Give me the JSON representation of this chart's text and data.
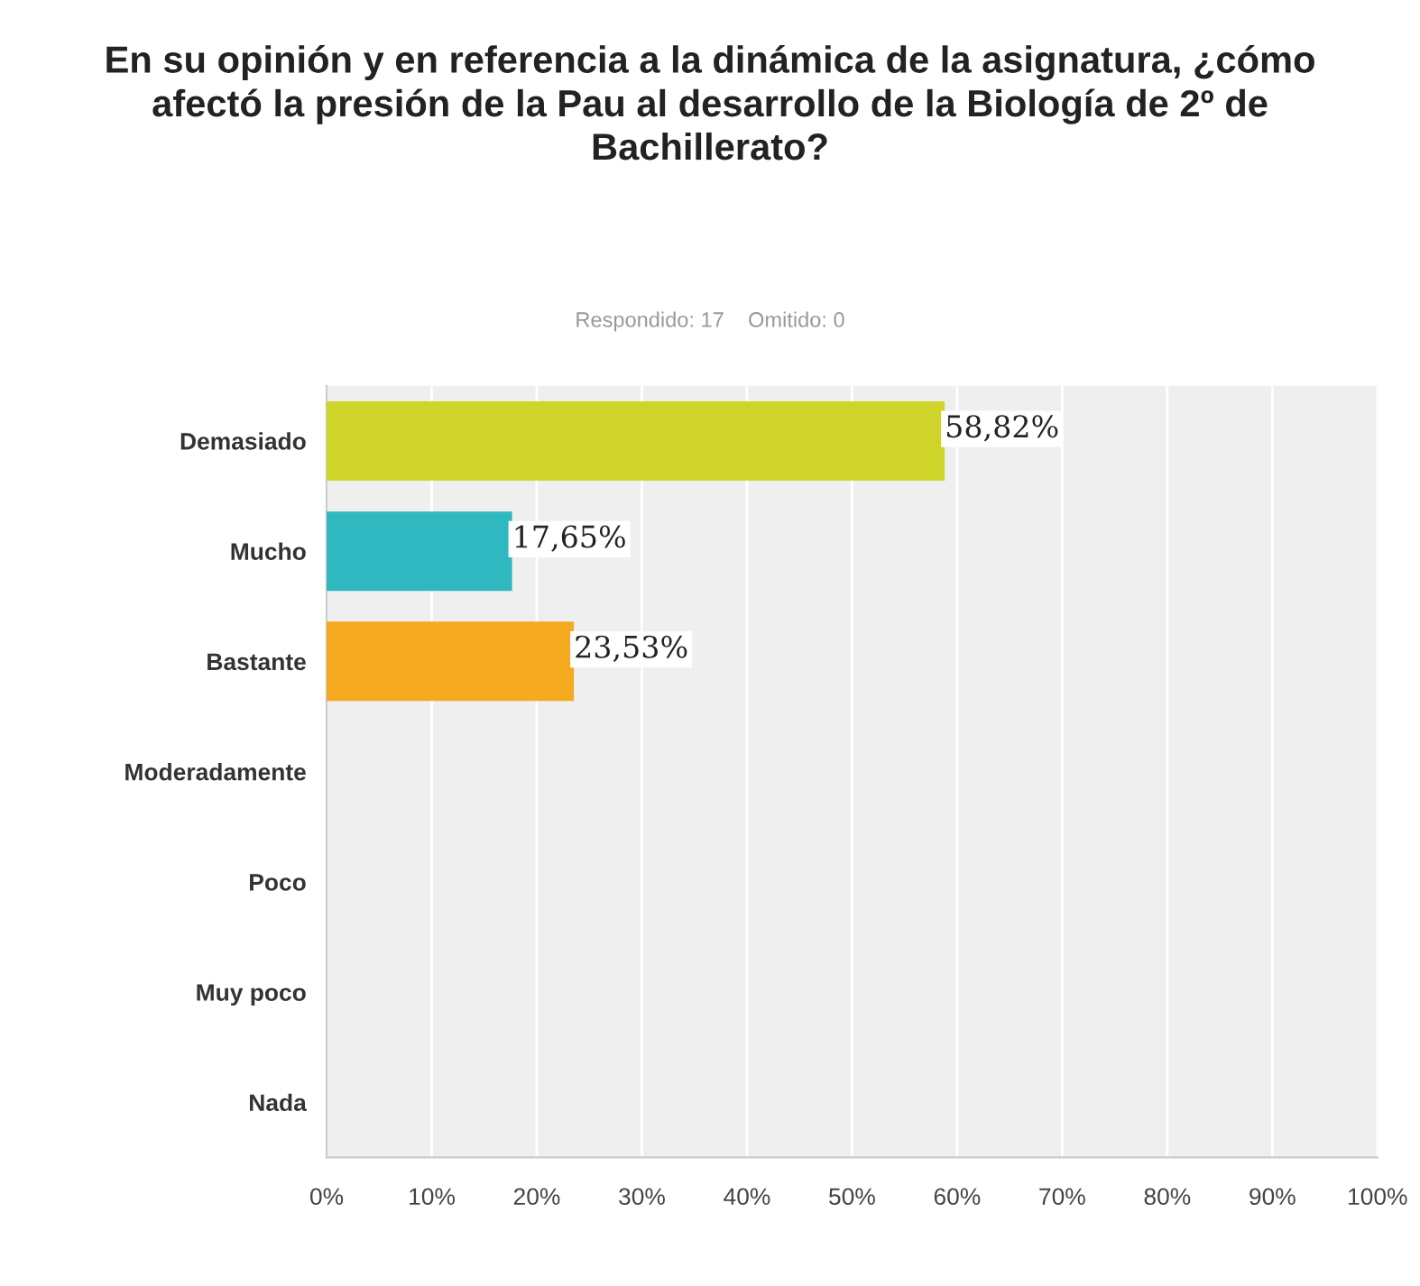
{
  "chart_data": {
    "type": "bar",
    "orientation": "horizontal",
    "title": "En su opinión y en referencia a la dinámica de la asignatura, ¿cómo afectó la presión de la Pau al desarrollo de la Biología de 2º de Bachillerato?",
    "subtitle": "Respondido: 17    Omitido: 0",
    "categories": [
      "Demasiado",
      "Mucho",
      "Bastante",
      "Moderadamente",
      "Poco",
      "Muy poco",
      "Nada"
    ],
    "values": [
      58.82,
      17.65,
      23.53,
      0,
      0,
      0,
      0
    ],
    "colors": [
      "#cfd42a",
      "#2fb8bf",
      "#f5a91f",
      "#7f7f7f",
      "#7f7f7f",
      "#7f7f7f",
      "#7f7f7f"
    ],
    "value_labels": [
      "58,82%",
      "17,65%",
      "23,53%",
      null,
      null,
      null,
      null
    ],
    "xlim": [
      0,
      100
    ],
    "xticks": [
      {
        "value": 0,
        "label": "0%"
      },
      {
        "value": 10,
        "label": "10%"
      },
      {
        "value": 20,
        "label": "20%"
      },
      {
        "value": 30,
        "label": "30%"
      },
      {
        "value": 40,
        "label": "40%"
      },
      {
        "value": 50,
        "label": "50%"
      },
      {
        "value": 60,
        "label": "60%"
      },
      {
        "value": 70,
        "label": "70%"
      },
      {
        "value": 80,
        "label": "80%"
      },
      {
        "value": 90,
        "label": "90%"
      },
      {
        "value": 100,
        "label": "100%"
      }
    ],
    "grid": "x"
  }
}
